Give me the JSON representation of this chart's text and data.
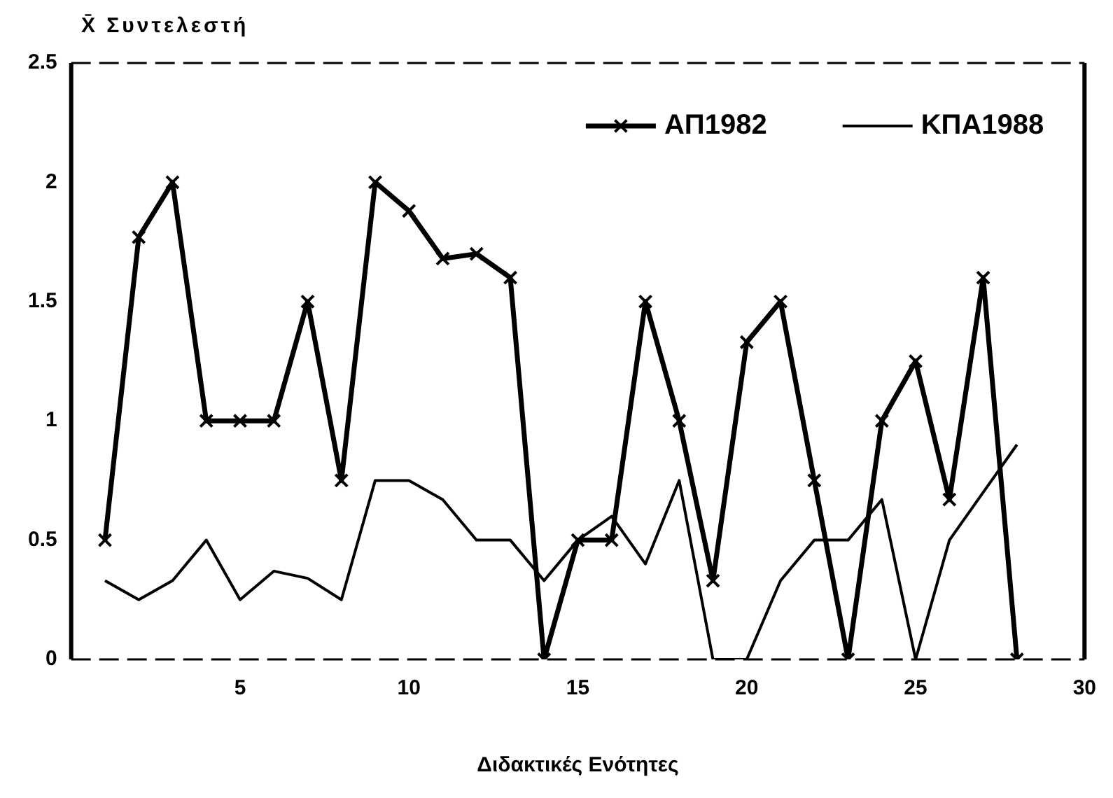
{
  "chart_data": {
    "type": "line",
    "ylabel": "X̄ Συντελεστή",
    "xlabel": "Διδακτικές Ενότητες",
    "x": [
      1,
      2,
      3,
      4,
      5,
      6,
      7,
      8,
      9,
      10,
      11,
      12,
      13,
      14,
      15,
      16,
      17,
      18,
      19,
      20,
      21,
      22,
      23,
      24,
      25,
      26,
      27,
      28
    ],
    "series": [
      {
        "name": "ΑΠ1982",
        "color": "#000000",
        "marker": "cross",
        "values": [
          0.5,
          1.77,
          2.0,
          1.0,
          1.0,
          1.0,
          1.5,
          0.75,
          2.0,
          1.88,
          1.68,
          1.7,
          1.6,
          0,
          0.5,
          0.5,
          1.5,
          1.0,
          0.33,
          1.33,
          1.5,
          0.75,
          0,
          1.0,
          1.25,
          0.67,
          1.6,
          0
        ]
      },
      {
        "name": "ΚΠΑ1988",
        "color": "#000000",
        "marker": "none",
        "values": [
          0.33,
          0.25,
          0.33,
          0.5,
          0.25,
          0.37,
          0.34,
          0.25,
          0.75,
          0.75,
          0.67,
          0.5,
          0.5,
          0.33,
          0.5,
          0.6,
          0.4,
          0.75,
          0,
          0,
          0.33,
          0.5,
          0.5,
          0.67,
          0,
          0.5,
          0.7,
          0.9
        ]
      }
    ],
    "xlim": [
      0,
      30
    ],
    "xticks": [
      5,
      10,
      15,
      20,
      25,
      30
    ],
    "ylim": [
      0,
      2.5
    ],
    "yticks": [
      0,
      0.5,
      1,
      1.5,
      2,
      2.5
    ],
    "legend": "top right",
    "grid": false
  }
}
